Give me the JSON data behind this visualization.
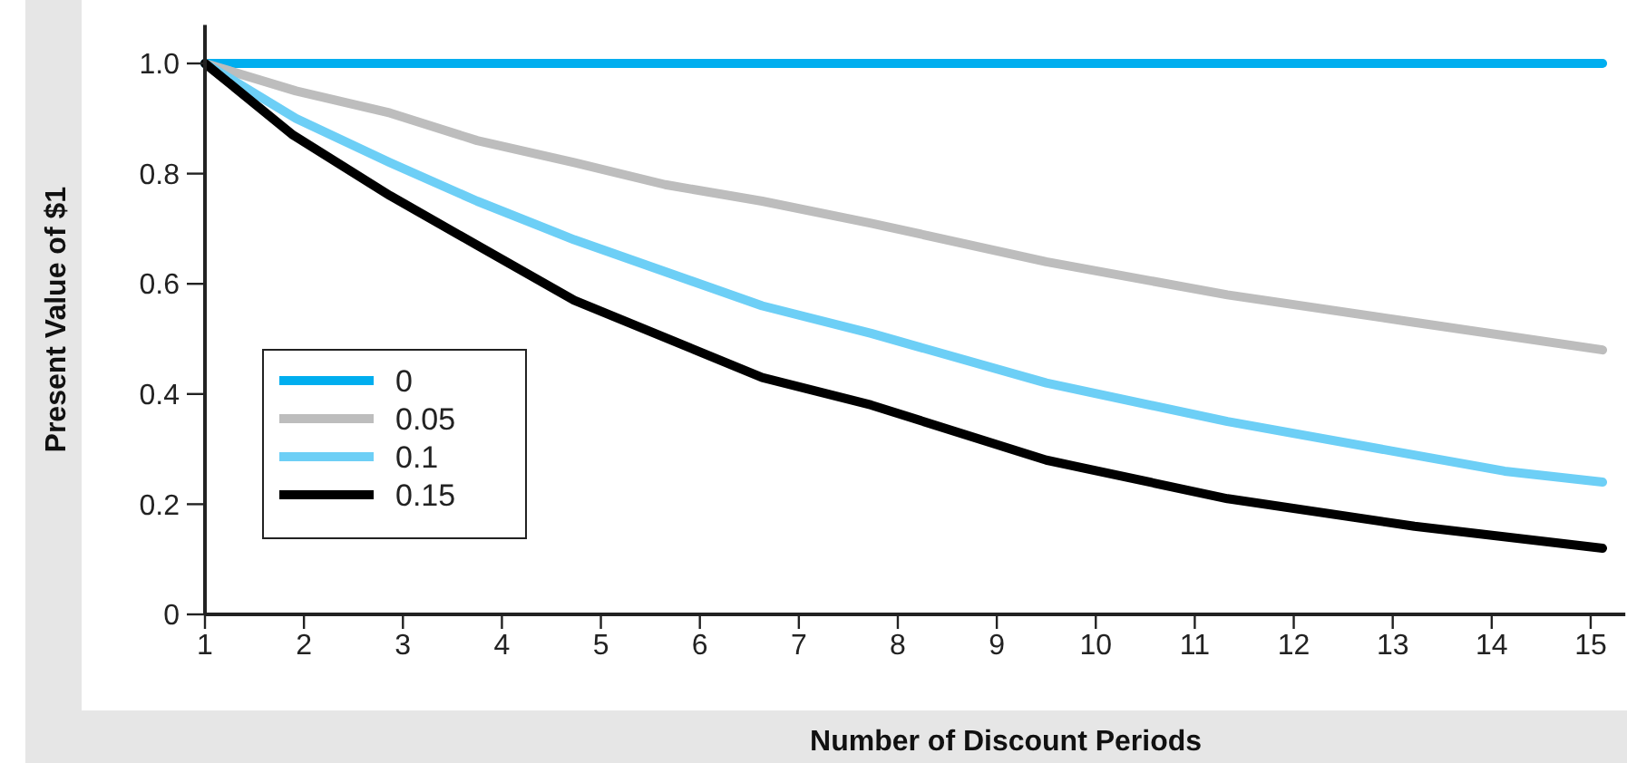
{
  "chart_data": {
    "type": "line",
    "xlabel": "Number of Discount Periods",
    "ylabel": "Present Value of $1",
    "xlim": [
      1,
      15.35
    ],
    "xticks": [
      1,
      2,
      3,
      4,
      5,
      6,
      7,
      8,
      9,
      10,
      11,
      12,
      13,
      14,
      15
    ],
    "ylim": [
      0,
      1.07
    ],
    "yticks": [
      0,
      0.2,
      0.4,
      0.6,
      0.8,
      {
        "value": 1,
        "label": "1.0"
      }
    ],
    "grid": false,
    "legend": "bottom left",
    "marker": "none",
    "line_style": "solid",
    "series": [
      {
        "name": "0",
        "color": "#00aeef",
        "x": [
          1,
          15.12
        ],
        "values": [
          1,
          1
        ]
      },
      {
        "name": "0.05",
        "color": "#bdbdbd",
        "x": [
          1,
          1.92,
          2.87,
          3.75,
          4.73,
          5.65,
          6.63,
          7.73,
          9.5,
          11.33,
          13.22,
          15.12
        ],
        "values": [
          1,
          0.95,
          0.91,
          0.86,
          0.82,
          0.78,
          0.75,
          0.71,
          0.64,
          0.58,
          0.53,
          0.48
        ]
      },
      {
        "name": "0.1",
        "color": "#6dcff6",
        "x": [
          1,
          1.92,
          2.87,
          3.75,
          4.73,
          6.63,
          7.73,
          9.5,
          11.33,
          14.13,
          15.12
        ],
        "values": [
          1,
          0.9,
          0.82,
          0.75,
          0.68,
          0.56,
          0.51,
          0.42,
          0.35,
          0.26,
          0.24
        ]
      },
      {
        "name": "0.15",
        "color": "#000000",
        "x": [
          1,
          1.89,
          2.87,
          3.75,
          4.73,
          6.63,
          7.73,
          9.5,
          11.33,
          13.22,
          15.12
        ],
        "values": [
          1,
          0.87,
          0.76,
          0.67,
          0.57,
          0.43,
          0.38,
          0.28,
          0.21,
          0.16,
          0.12
        ]
      }
    ]
  }
}
